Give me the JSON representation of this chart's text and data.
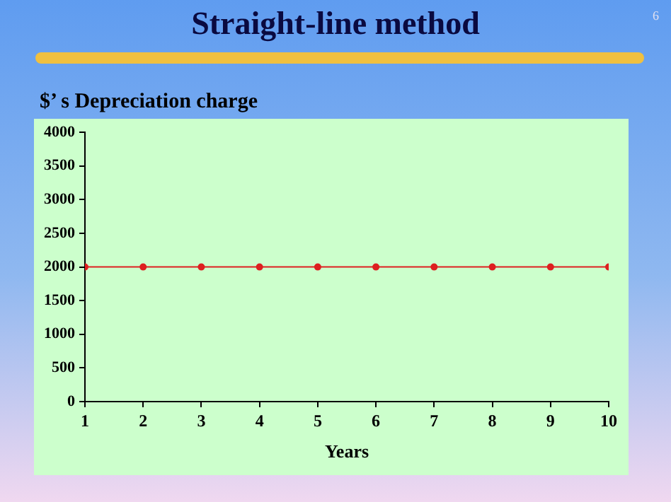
{
  "chart_data": {
    "type": "line",
    "title": "Straight-line method",
    "ylabel": "$’ s Depreciation charge",
    "xlabel": "Years",
    "annotations": [
      "6"
    ],
    "x": [
      1,
      2,
      3,
      4,
      5,
      6,
      7,
      8,
      9,
      10
    ],
    "values": [
      2000,
      2000,
      2000,
      2000,
      2000,
      2000,
      2000,
      2000,
      2000,
      2000
    ],
    "color": "#dd2020",
    "marker": "circle",
    "line_style": "solid",
    "xlim": [
      1,
      10
    ],
    "xticks": [
      1,
      2,
      3,
      4,
      5,
      6,
      7,
      8,
      9,
      10
    ],
    "ylim": [
      0,
      4000
    ],
    "yticks": [
      0,
      500,
      1000,
      1500,
      2000,
      2500,
      3000,
      3500,
      4000
    ],
    "grid": false,
    "legend": false
  }
}
